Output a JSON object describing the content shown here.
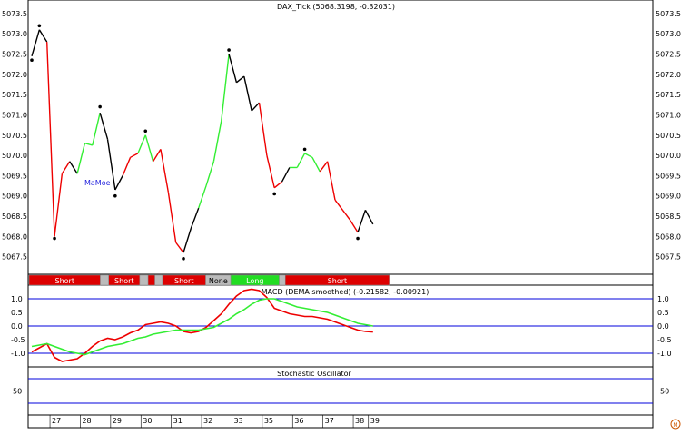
{
  "chart_data": [
    {
      "panel": "price",
      "type": "line",
      "title": "DAX_Tick (5068.3198, -0.32031)",
      "annotation": "MaMoe",
      "ylim": [
        5067.2,
        5073.7
      ],
      "yticks": [
        "5073.5",
        "5073.0",
        "5072.5",
        "5072.0",
        "5071.5",
        "5071.0",
        "5070.5",
        "5070.0",
        "5069.5",
        "5069.0",
        "5068.5",
        "5068.0",
        "5067.5"
      ],
      "series": [
        {
          "values": [
            5072.45,
            5073.1,
            5072.8,
            5068.0,
            5069.55,
            5069.85,
            5069.55,
            5070.3,
            5070.25,
            5071.05,
            5070.4,
            5069.15,
            5069.5,
            5069.95,
            5070.05,
            5070.5,
            5069.85,
            5070.15,
            5069.1,
            5067.85,
            5067.6,
            5068.2,
            5068.7,
            5069.25,
            5069.85,
            5070.85,
            5072.5,
            5071.8,
            5071.95,
            5071.1,
            5071.3,
            5070.0,
            5069.2,
            5069.35,
            5069.7,
            5069.7,
            5070.05,
            5069.95,
            5069.6,
            5069.85,
            5068.9,
            5068.65,
            5068.4,
            5068.1,
            5068.65,
            5068.3
          ],
          "colors": [
            "green",
            "black",
            "black",
            "red",
            "red",
            "red",
            "black",
            "green",
            "green",
            "green",
            "black",
            "black",
            "black",
            "red",
            "red",
            "green",
            "green",
            "red",
            "red",
            "red",
            "red",
            "black",
            "black",
            "green",
            "green",
            "green",
            "green",
            "black",
            "black",
            "black",
            "black",
            "red",
            "red",
            "red",
            "black",
            "green",
            "green",
            "green",
            "green",
            "red",
            "red",
            "red",
            "red",
            "red",
            "black",
            "black"
          ]
        }
      ],
      "markers": [
        {
          "type": "dot",
          "index": 0,
          "value": 5072.35
        },
        {
          "type": "dot",
          "index": 1,
          "value": 5073.2
        },
        {
          "type": "dot",
          "index": 3,
          "value": 5067.95
        },
        {
          "type": "dot",
          "index": 9,
          "value": 5071.2
        },
        {
          "type": "dot",
          "index": 11,
          "value": 5069.0
        },
        {
          "type": "dot",
          "index": 15,
          "value": 5070.6
        },
        {
          "type": "dot",
          "index": 20,
          "value": 5067.45
        },
        {
          "type": "dot",
          "index": 26,
          "value": 5072.6
        },
        {
          "type": "dot",
          "index": 32,
          "value": 5069.05
        },
        {
          "type": "dot",
          "index": 36,
          "value": 5070.15
        },
        {
          "type": "dot",
          "index": 43,
          "value": 5067.95
        }
      ]
    },
    {
      "panel": "signals",
      "type": "table",
      "segments": [
        {
          "label": "Short",
          "state": "short",
          "start": 0,
          "end": 9.4
        },
        {
          "label": "",
          "state": "none",
          "start": 9.4,
          "end": 10.5
        },
        {
          "label": "Short",
          "state": "short",
          "start": 10.5,
          "end": 14.6
        },
        {
          "label": "",
          "state": "none",
          "start": 14.6,
          "end": 15.7
        },
        {
          "label": "",
          "state": "short",
          "start": 15.7,
          "end": 16.6
        },
        {
          "label": "",
          "state": "none",
          "start": 16.6,
          "end": 17.6
        },
        {
          "label": "Short",
          "state": "short",
          "start": 17.6,
          "end": 23.3
        },
        {
          "label": "None",
          "state": "none",
          "start": 23.3,
          "end": 26.6
        },
        {
          "label": "Long",
          "state": "long",
          "start": 26.6,
          "end": 33.0
        },
        {
          "label": "",
          "state": "none",
          "start": 33.0,
          "end": 33.8
        },
        {
          "label": "Short",
          "state": "short",
          "start": 33.8,
          "end": 47.5
        }
      ]
    },
    {
      "panel": "macd",
      "type": "line",
      "title": "MACD (DEMA smoothed) (-0.21582, -0.00921)",
      "ylim": [
        -1.5,
        1.5
      ],
      "yticks": [
        "1.0",
        "0.5",
        "0.0",
        "-0.5",
        "-1.0"
      ],
      "hlines": [
        1.0,
        0.0,
        -1.0
      ],
      "series": [
        {
          "color": "red",
          "values": [
            -0.95,
            -0.8,
            -0.65,
            -1.15,
            -1.3,
            -1.25,
            -1.2,
            -1.0,
            -0.75,
            -0.55,
            -0.45,
            -0.5,
            -0.4,
            -0.25,
            -0.15,
            0.05,
            0.1,
            0.15,
            0.1,
            0.0,
            -0.2,
            -0.25,
            -0.2,
            -0.05,
            0.2,
            0.45,
            0.8,
            1.1,
            1.3,
            1.35,
            1.3,
            1.05,
            0.65,
            0.55,
            0.45,
            0.4,
            0.35,
            0.35,
            0.3,
            0.25,
            0.15,
            0.05,
            -0.05,
            -0.15,
            -0.2,
            -0.22
          ]
        },
        {
          "color": "green",
          "values": [
            -0.75,
            -0.7,
            -0.65,
            -0.75,
            -0.85,
            -0.95,
            -1.0,
            -1.05,
            -0.95,
            -0.85,
            -0.75,
            -0.7,
            -0.65,
            -0.55,
            -0.45,
            -0.4,
            -0.3,
            -0.25,
            -0.2,
            -0.15,
            -0.15,
            -0.15,
            -0.15,
            -0.1,
            -0.05,
            0.1,
            0.25,
            0.45,
            0.6,
            0.8,
            0.95,
            1.0,
            1.0,
            0.9,
            0.8,
            0.7,
            0.65,
            0.6,
            0.55,
            0.5,
            0.4,
            0.3,
            0.2,
            0.1,
            0.05,
            0.0
          ]
        }
      ]
    },
    {
      "panel": "stochastic",
      "type": "line",
      "title": "Stochastic Oscillator",
      "ylim": [
        0,
        100
      ],
      "yticks": [
        "50"
      ],
      "hlines": [
        80,
        50,
        20
      ],
      "series": []
    },
    {
      "panel": "dates",
      "type": "table",
      "labels": [
        {
          "label": "27",
          "index": 3
        },
        {
          "label": "28",
          "index": 7
        },
        {
          "label": "29",
          "index": 11
        },
        {
          "label": "30",
          "index": 15
        },
        {
          "label": "31",
          "index": 19
        },
        {
          "label": "32",
          "index": 23
        },
        {
          "label": "33",
          "index": 27
        },
        {
          "label": "35",
          "index": 31
        },
        {
          "label": "36",
          "index": 35
        },
        {
          "label": "37",
          "index": 39
        },
        {
          "label": "38",
          "index": 43
        },
        {
          "label": "39",
          "index": 45
        }
      ]
    }
  ],
  "colors": {
    "green": "#33ee33",
    "red": "#ee0000",
    "black": "#000000",
    "blue": "#0000dd",
    "short": "#dd0000",
    "long": "#22dd22",
    "none": "#bbbbbb",
    "annotation": "#2222dd"
  }
}
